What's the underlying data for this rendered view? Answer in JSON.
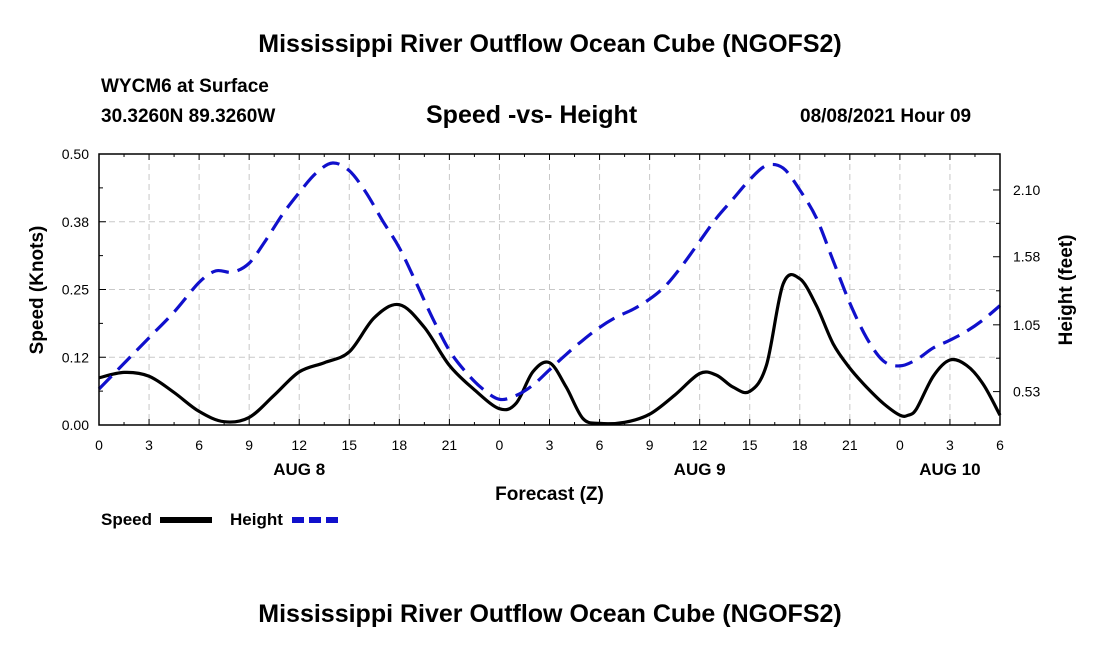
{
  "header": {
    "title": "Mississippi River Outflow Ocean Cube (NGOFS2)",
    "station": "WYCM6 at Surface",
    "coords": "30.3260N  89.3260W",
    "chart_title": "Speed -vs- Height",
    "datetime": "08/08/2021 Hour 09"
  },
  "footer": {
    "title": "Mississippi River Outflow Ocean Cube (NGOFS2)"
  },
  "colors": {
    "speed": "#000000",
    "height": "#1010cc",
    "grid": "#c8c8c8"
  },
  "chart_data": {
    "type": "line",
    "xlabel": "Forecast (Z)",
    "ylabel_left": "Speed (Knots)",
    "ylabel_right": "Height (feet)",
    "xlim": [
      0,
      54
    ],
    "ylim_left": [
      0,
      0.5
    ],
    "ylim_right": [
      0.27,
      2.38
    ],
    "x_ticks": [
      0,
      3,
      6,
      9,
      12,
      15,
      18,
      21,
      24,
      27,
      30,
      33,
      36,
      39,
      42,
      45,
      48,
      51,
      54
    ],
    "x_tick_labels": [
      "0",
      "3",
      "6",
      "9",
      "12",
      "15",
      "18",
      "21",
      "0",
      "3",
      "6",
      "9",
      "12",
      "15",
      "18",
      "21",
      "0",
      "3",
      "6"
    ],
    "y_left_ticks": [
      0,
      0.125,
      0.25,
      0.375,
      0.5
    ],
    "y_left_tick_labels": [
      "0.00",
      "0.12",
      "0.25",
      "0.38",
      "0.50"
    ],
    "y_right_ticks": [
      0.53,
      1.05,
      1.58,
      2.1
    ],
    "y_right_tick_labels": [
      "0.53",
      "1.05",
      "1.58",
      "2.10"
    ],
    "day_labels": [
      {
        "x": 12,
        "label": "AUG 8"
      },
      {
        "x": 36,
        "label": "AUG 9"
      },
      {
        "x": 51,
        "label": "AUG 10"
      }
    ],
    "grid": true,
    "legend": [
      {
        "name": "Speed",
        "key": "speed",
        "style": "solid"
      },
      {
        "name": "Height",
        "key": "height",
        "style": "dashed"
      }
    ],
    "series": [
      {
        "name": "Speed",
        "axis": "left",
        "style": "solid",
        "x": [
          0,
          1.5,
          3,
          4.5,
          6,
          7.5,
          9,
          10.5,
          12,
          13.5,
          15,
          16.5,
          18,
          19.5,
          21,
          22.5,
          24,
          25,
          26,
          27,
          28,
          29,
          30,
          31.5,
          33,
          34.5,
          36,
          37,
          38,
          39,
          40,
          41,
          42,
          43,
          44,
          45,
          46,
          47,
          48,
          48.5,
          49,
          50,
          51,
          52,
          53,
          54
        ],
        "y": [
          0.087,
          0.097,
          0.09,
          0.06,
          0.025,
          0.006,
          0.014,
          0.055,
          0.098,
          0.115,
          0.135,
          0.198,
          0.222,
          0.18,
          0.11,
          0.065,
          0.03,
          0.04,
          0.098,
          0.115,
          0.07,
          0.012,
          0.003,
          0.005,
          0.02,
          0.055,
          0.095,
          0.092,
          0.07,
          0.062,
          0.11,
          0.26,
          0.27,
          0.22,
          0.15,
          0.105,
          0.07,
          0.04,
          0.018,
          0.018,
          0.03,
          0.09,
          0.12,
          0.11,
          0.075,
          0.018
        ]
      },
      {
        "name": "Height",
        "axis": "right",
        "style": "dashed",
        "x": [
          0,
          1.5,
          3,
          4.5,
          6,
          7,
          8,
          9,
          10,
          11,
          12,
          13,
          14,
          15,
          16,
          17,
          18,
          19,
          20,
          21,
          22,
          23,
          24,
          25,
          26,
          27,
          28,
          29,
          30,
          31,
          32,
          33,
          34,
          35,
          36,
          37,
          38,
          39,
          40,
          41,
          42,
          43,
          44,
          45,
          46,
          47,
          48,
          49,
          50,
          51,
          52,
          53,
          54
        ],
        "y": [
          0.55,
          0.75,
          0.95,
          1.15,
          1.38,
          1.47,
          1.46,
          1.53,
          1.71,
          1.91,
          2.08,
          2.23,
          2.31,
          2.25,
          2.08,
          1.86,
          1.65,
          1.38,
          1.1,
          0.85,
          0.68,
          0.55,
          0.47,
          0.5,
          0.58,
          0.7,
          0.82,
          0.93,
          1.03,
          1.11,
          1.17,
          1.25,
          1.36,
          1.52,
          1.7,
          1.88,
          2.03,
          2.18,
          2.29,
          2.27,
          2.1,
          1.88,
          1.55,
          1.22,
          0.95,
          0.77,
          0.73,
          0.78,
          0.87,
          0.93,
          1.0,
          1.09,
          1.2
        ]
      }
    ]
  }
}
